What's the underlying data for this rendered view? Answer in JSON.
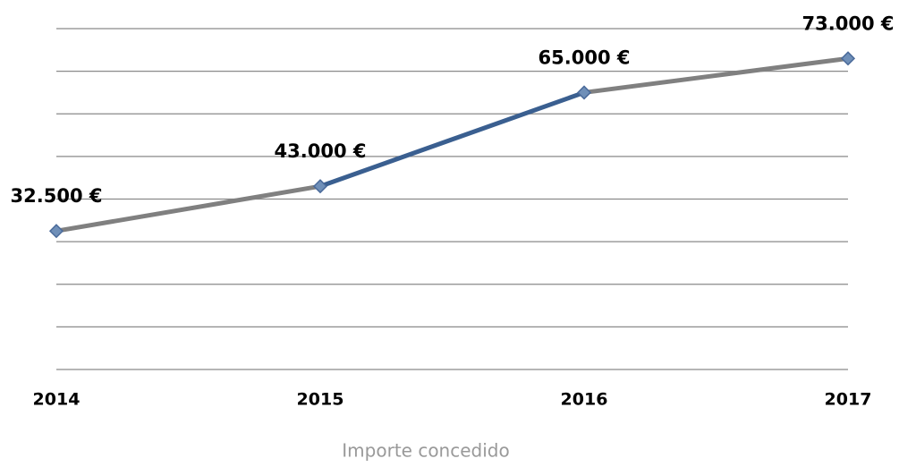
{
  "chart_data": {
    "type": "line",
    "x_label": "Importe concedido",
    "categories": [
      "2014",
      "2015",
      "2016",
      "2017"
    ],
    "series": [
      {
        "color": "#808080",
        "segment_colors": [
          "#808080",
          "#3a5f90",
          "#808080"
        ],
        "marker_color": "#6f8fb8",
        "values": [
          32500,
          43000,
          65000,
          73000
        ],
        "value_labels": [
          "32.500 €",
          "43.000 €",
          "65.000 €",
          "73.000 €"
        ]
      }
    ],
    "ylim": [
      0,
      80000
    ],
    "yticks": [
      0,
      10000,
      20000,
      30000,
      40000,
      50000,
      60000,
      70000,
      80000
    ],
    "grid": true
  }
}
